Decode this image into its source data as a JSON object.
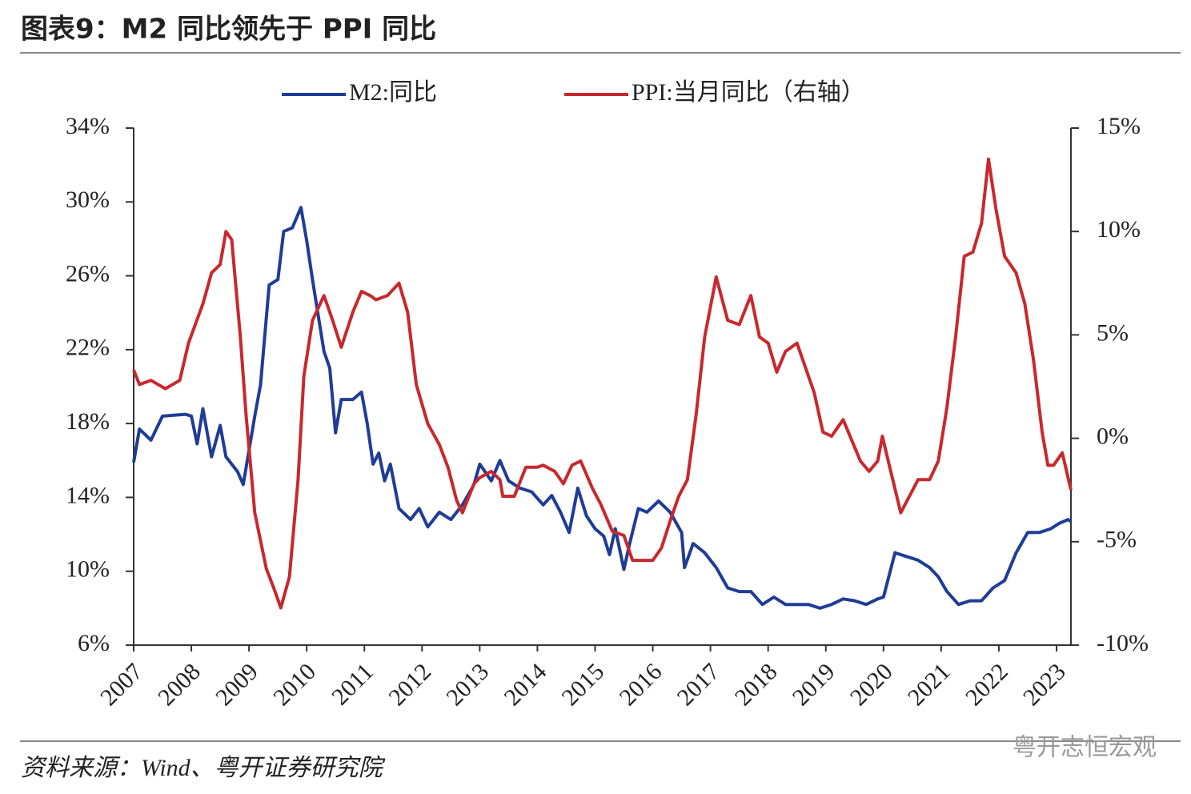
{
  "chart_data": {
    "type": "line",
    "title": "图表9：M2 同比领先于 PPI 同比",
    "source": "资料来源：Wind、粤开证券研究院",
    "watermark": "粤开志恒宏观",
    "xlim": [
      2007,
      2023.25
    ],
    "xticks": [
      2007,
      2008,
      2009,
      2010,
      2011,
      2012,
      2013,
      2014,
      2015,
      2016,
      2017,
      2018,
      2019,
      2020,
      2021,
      2022,
      2023
    ],
    "ylim": [
      6,
      34
    ],
    "yticks": [
      {
        "value": 6,
        "label": "6%"
      },
      {
        "value": 10,
        "label": "10%"
      },
      {
        "value": 14,
        "label": "14%"
      },
      {
        "value": 18,
        "label": "18%"
      },
      {
        "value": 22,
        "label": "22%"
      },
      {
        "value": 26,
        "label": "26%"
      },
      {
        "value": 30,
        "label": "30%"
      },
      {
        "value": 34,
        "label": "34%"
      }
    ],
    "y2lim": [
      -10,
      15
    ],
    "y2ticks": [
      {
        "value": -10,
        "label": "-10%"
      },
      {
        "value": -5,
        "label": "-5%"
      },
      {
        "value": 0,
        "label": "0%"
      },
      {
        "value": 5,
        "label": "5%"
      },
      {
        "value": 10,
        "label": "10%"
      },
      {
        "value": 15,
        "label": "15%"
      }
    ],
    "legend": "top",
    "series": [
      {
        "name": "M2:同比",
        "color": "#1f3c96",
        "x": [
          2007.0,
          2007.1,
          2007.3,
          2007.5,
          2007.9,
          2008.0,
          2008.1,
          2008.2,
          2008.35,
          2008.5,
          2008.6,
          2008.8,
          2008.9,
          2009.1,
          2009.2,
          2009.35,
          2009.5,
          2009.6,
          2009.75,
          2009.9,
          2010.0,
          2010.1,
          2010.3,
          2010.4,
          2010.5,
          2010.6,
          2010.8,
          2010.95,
          2011.05,
          2011.15,
          2011.25,
          2011.35,
          2011.45,
          2011.6,
          2011.8,
          2011.95,
          2012.1,
          2012.3,
          2012.5,
          2012.7,
          2012.9,
          2013.0,
          2013.2,
          2013.35,
          2013.5,
          2013.7,
          2013.9,
          2014.1,
          2014.25,
          2014.4,
          2014.55,
          2014.7,
          2014.85,
          2015.0,
          2015.15,
          2015.25,
          2015.35,
          2015.5,
          2015.6,
          2015.75,
          2015.9,
          2016.1,
          2016.3,
          2016.5,
          2016.55,
          2016.7,
          2016.9,
          2017.1,
          2017.3,
          2017.5,
          2017.7,
          2017.9,
          2018.1,
          2018.3,
          2018.5,
          2018.7,
          2018.9,
          2019.1,
          2019.3,
          2019.5,
          2019.7,
          2019.9,
          2020.0,
          2020.2,
          2020.4,
          2020.6,
          2020.8,
          2020.95,
          2021.1,
          2021.3,
          2021.5,
          2021.7,
          2021.9,
          2022.1,
          2022.3,
          2022.5,
          2022.7,
          2022.9,
          2023.05,
          2023.2,
          2023.25
        ],
        "values": [
          15.9,
          17.7,
          17.1,
          18.4,
          18.5,
          18.4,
          16.9,
          18.8,
          16.2,
          17.9,
          16.2,
          15.4,
          14.7,
          18.4,
          20.1,
          25.5,
          25.8,
          28.4,
          28.6,
          29.7,
          27.9,
          25.8,
          21.9,
          21.0,
          17.5,
          19.3,
          19.3,
          19.7,
          18.0,
          15.8,
          16.4,
          14.9,
          15.8,
          13.4,
          12.8,
          13.4,
          12.4,
          13.2,
          12.8,
          13.6,
          14.7,
          15.8,
          14.9,
          16.0,
          14.9,
          14.5,
          14.3,
          13.6,
          14.1,
          13.2,
          12.1,
          14.5,
          13.0,
          12.3,
          11.9,
          10.9,
          12.3,
          10.1,
          11.5,
          13.4,
          13.2,
          13.8,
          13.2,
          12.1,
          10.2,
          11.5,
          11.0,
          10.2,
          9.1,
          8.9,
          8.9,
          8.2,
          8.6,
          8.2,
          8.2,
          8.2,
          8.0,
          8.2,
          8.5,
          8.4,
          8.2,
          8.5,
          8.6,
          11.0,
          10.8,
          10.6,
          10.2,
          9.7,
          8.9,
          8.2,
          8.4,
          8.4,
          9.1,
          9.5,
          11.0,
          12.1,
          12.1,
          12.3,
          12.6,
          12.8,
          12.7
        ]
      },
      {
        "name": "PPI:当月同比（右轴）",
        "color": "#c8282d",
        "axis": "y2",
        "x": [
          2007.0,
          2007.1,
          2007.3,
          2007.55,
          2007.8,
          2007.95,
          2008.2,
          2008.35,
          2008.5,
          2008.6,
          2008.7,
          2008.85,
          2008.95,
          2009.1,
          2009.3,
          2009.45,
          2009.55,
          2009.7,
          2009.85,
          2009.95,
          2010.1,
          2010.3,
          2010.45,
          2010.6,
          2010.8,
          2010.95,
          2011.1,
          2011.2,
          2011.4,
          2011.6,
          2011.75,
          2011.9,
          2012.1,
          2012.3,
          2012.45,
          2012.6,
          2012.7,
          2012.9,
          2013.0,
          2013.2,
          2013.35,
          2013.4,
          2013.6,
          2013.8,
          2014.0,
          2014.1,
          2014.3,
          2014.45,
          2014.6,
          2014.75,
          2014.95,
          2015.1,
          2015.3,
          2015.5,
          2015.65,
          2015.9,
          2016.0,
          2016.15,
          2016.3,
          2016.45,
          2016.6,
          2016.75,
          2016.9,
          2017.1,
          2017.3,
          2017.5,
          2017.7,
          2017.85,
          2018.0,
          2018.15,
          2018.3,
          2018.5,
          2018.65,
          2018.8,
          2018.95,
          2019.1,
          2019.3,
          2019.45,
          2019.6,
          2019.75,
          2019.9,
          2019.98,
          2020.1,
          2020.3,
          2020.45,
          2020.6,
          2020.8,
          2020.95,
          2021.1,
          2021.25,
          2021.4,
          2021.55,
          2021.7,
          2021.82,
          2021.95,
          2022.1,
          2022.3,
          2022.45,
          2022.6,
          2022.75,
          2022.85,
          2022.95,
          2023.1,
          2023.25
        ],
        "values": [
          3.3,
          2.6,
          2.8,
          2.4,
          2.8,
          4.6,
          6.5,
          8.0,
          8.4,
          10.0,
          9.6,
          4.9,
          1.1,
          -3.6,
          -6.3,
          -7.4,
          -8.2,
          -6.7,
          -2.0,
          3.0,
          5.7,
          6.9,
          5.7,
          4.4,
          6.1,
          7.1,
          6.9,
          6.7,
          6.9,
          7.5,
          6.1,
          2.6,
          0.7,
          -0.3,
          -1.4,
          -3.0,
          -3.6,
          -2.2,
          -1.9,
          -1.6,
          -2.0,
          -2.8,
          -2.8,
          -1.4,
          -1.4,
          -1.3,
          -1.6,
          -2.2,
          -1.3,
          -1.1,
          -2.4,
          -3.2,
          -4.5,
          -4.7,
          -5.9,
          -5.9,
          -5.9,
          -5.3,
          -4.0,
          -2.8,
          -2.0,
          1.1,
          4.9,
          7.8,
          5.7,
          5.5,
          6.9,
          4.9,
          4.6,
          3.2,
          4.2,
          4.6,
          3.4,
          2.2,
          0.3,
          0.1,
          0.9,
          -0.1,
          -1.1,
          -1.6,
          -1.1,
          0.1,
          -1.3,
          -3.6,
          -2.8,
          -2.0,
          -2.0,
          -1.1,
          1.5,
          4.9,
          8.8,
          9.0,
          10.4,
          13.5,
          11.1,
          8.8,
          8.0,
          6.5,
          3.8,
          0.3,
          -1.3,
          -1.3,
          -0.7,
          -2.5
        ]
      }
    ]
  }
}
